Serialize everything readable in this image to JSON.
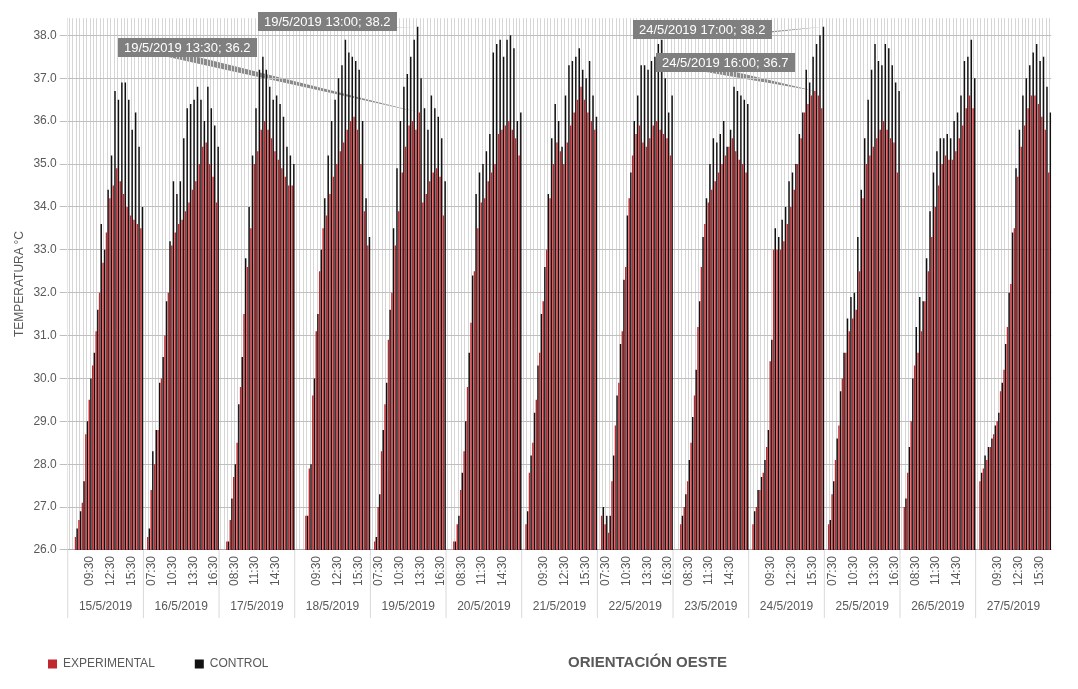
{
  "chart_data": {
    "type": "bar",
    "title": "ORIENTACIÓN OESTE",
    "ylabel": "TEMPERATURA °C",
    "categories": [
      null,
      null,
      null,
      null,
      null,
      null,
      "09:30",
      null,
      null,
      null,
      null,
      null,
      "12:30",
      null,
      null,
      null,
      null,
      null,
      "15:30",
      null,
      null,
      null,
      null,
      null,
      "07:30",
      null,
      null,
      null,
      null,
      null,
      "10:30",
      null,
      null,
      null,
      null,
      null,
      "13:30",
      null,
      null,
      null,
      null,
      null,
      "16:30",
      null,
      null,
      null,
      null,
      null,
      "08:30",
      null,
      null,
      null,
      null,
      null,
      "11:30",
      null,
      null,
      null,
      null,
      null,
      "14:30",
      null,
      null,
      null,
      null,
      null,
      null,
      null,
      null,
      null,
      null,
      null,
      "09:30",
      null,
      null,
      null,
      null,
      null,
      "12:30",
      null,
      null,
      null,
      null,
      null,
      "15:30",
      null,
      null,
      null,
      null,
      null,
      "07:30",
      null,
      null,
      null,
      null,
      null,
      "10:30",
      null,
      null,
      null,
      null,
      null,
      "13:30",
      null,
      null,
      null,
      null,
      null,
      "16:30",
      null,
      null,
      null,
      null,
      null,
      "08:30",
      null,
      null,
      null,
      null,
      null,
      "11:30",
      null,
      null,
      null,
      null,
      null,
      "14:30",
      null,
      null,
      null,
      null,
      null,
      null,
      null,
      null,
      null,
      null,
      null,
      "09:30",
      null,
      null,
      null,
      null,
      null,
      "12:30",
      null,
      null,
      null,
      null,
      null,
      "15:30",
      null,
      null,
      null,
      null,
      null,
      "07:30",
      null,
      null,
      null,
      null,
      null,
      "10:30",
      null,
      null,
      null,
      null,
      null,
      "13:30",
      null,
      null,
      null,
      null,
      null,
      "16:30",
      null,
      null,
      null,
      null,
      null,
      "08:30",
      null,
      null,
      null,
      null,
      null,
      "11:30",
      null,
      null,
      null,
      null,
      null,
      "14:30",
      null,
      null,
      null,
      null,
      null,
      null,
      null,
      null,
      null,
      null,
      null,
      "09:30",
      null,
      null,
      null,
      null,
      null,
      "12:30",
      null,
      null,
      null,
      null,
      null,
      "15:30",
      null,
      null,
      null,
      null,
      null,
      "07:30",
      null,
      null,
      null,
      null,
      null,
      "10:30",
      null,
      null,
      null,
      null,
      null,
      "13:30",
      null,
      null,
      null,
      null,
      null,
      "16:30",
      null,
      null,
      null,
      null,
      null,
      "08:30",
      null,
      null,
      null,
      null,
      null,
      "11:30",
      null,
      null,
      null,
      null,
      null,
      "14:30",
      null,
      null,
      null,
      null,
      null,
      null,
      null,
      null,
      null,
      null,
      null,
      "09:30",
      null,
      null,
      null,
      null,
      null,
      "12:30",
      null,
      null,
      null,
      null,
      null,
      "15:30",
      null,
      null,
      null
    ],
    "series": [
      {
        "name": "EXPERIMENTAL",
        "color": "#c0282e",
        "values": [
          null,
          null,
          26.3,
          26.7,
          27.1,
          28.7,
          29.5,
          30.3,
          31.1,
          32.0,
          32.7,
          33.4,
          34.2,
          34.5,
          34.9,
          34.6,
          34.3,
          34.0,
          33.8,
          33.7,
          33.6,
          33.5,
          null,
          26.3,
          27.4,
          28.0,
          28.8,
          30.0,
          31.0,
          32.0,
          33.1,
          33.4,
          33.6,
          33.7,
          33.9,
          34.1,
          34.4,
          34.6,
          35.0,
          35.4,
          35.5,
          35.0,
          34.7,
          34.1,
          null,
          null,
          26.2,
          26.7,
          27.7,
          28.5,
          29.8,
          31.5,
          32.6,
          33.5,
          35.0,
          35.3,
          35.8,
          36.0,
          35.8,
          35.6,
          35.3,
          35.1,
          34.9,
          34.7,
          34.5,
          34.5,
          null,
          null,
          null,
          26.8,
          27.9,
          29.6,
          31.1,
          32.5,
          33.5,
          33.8,
          34.3,
          34.7,
          35.0,
          35.3,
          35.5,
          35.8,
          36.0,
          36.1,
          35.8,
          35.0,
          33.9,
          33.1,
          null,
          26.2,
          27.0,
          28.3,
          29.4,
          30.9,
          32.0,
          33.1,
          33.9,
          34.8,
          35.4,
          35.9,
          36.0,
          35.8,
          36.2,
          34.1,
          34.3,
          34.6,
          34.8,
          34.9,
          34.7,
          33.8,
          null,
          null,
          26.2,
          26.6,
          27.4,
          28.3,
          29.8,
          31.3,
          32.5,
          33.5,
          34.1,
          34.2,
          34.6,
          34.8,
          35.0,
          35.7,
          35.8,
          35.9,
          36.0,
          35.8,
          35.6,
          35.2,
          null,
          26.6,
          27.8,
          28.5,
          29.5,
          30.6,
          31.8,
          33.0,
          34.2,
          35.0,
          35.5,
          35.3,
          35.0,
          35.5,
          35.9,
          36.2,
          36.5,
          36.8,
          36.5,
          36.2,
          36.0,
          35.8,
          null,
          26.8,
          26.6,
          26.4,
          27.6,
          28.9,
          29.9,
          31.1,
          32.6,
          34.2,
          35.2,
          35.7,
          35.9,
          35.5,
          35.4,
          35.6,
          35.9,
          36.0,
          35.8,
          35.7,
          35.6,
          35.2,
          null,
          null,
          26.6,
          27.0,
          27.6,
          28.5,
          29.6,
          31.2,
          32.6,
          33.6,
          34.1,
          34.4,
          34.6,
          34.8,
          35.0,
          35.2,
          35.4,
          35.6,
          35.3,
          35.1,
          35.0,
          34.8,
          null,
          26.6,
          27.0,
          27.4,
          27.8,
          28.4,
          30.4,
          33.0,
          33.0,
          33.0,
          33.2,
          33.6,
          34.0,
          34.4,
          35.0,
          35.6,
          36.2,
          36.4,
          36.6,
          36.7,
          36.6,
          36.3,
          null,
          26.6,
          27.3,
          28.1,
          28.9,
          30.0,
          30.6,
          31.1,
          31.4,
          31.6,
          32.5,
          34.2,
          35.0,
          35.2,
          35.4,
          35.6,
          35.8,
          36.0,
          35.8,
          35.6,
          35.5,
          34.8,
          null,
          27.0,
          27.8,
          29.0,
          30.3,
          30.6,
          31.1,
          31.8,
          32.5,
          33.3,
          34.0,
          34.5,
          35.0,
          35.2,
          35.1,
          35.1,
          35.3,
          35.6,
          35.9,
          36.3,
          36.6,
          36.3,
          null,
          27.6,
          27.9,
          28.1,
          28.4,
          28.7,
          29.0,
          29.7,
          30.2,
          31.2,
          32.2,
          33.5,
          34.7,
          35.4,
          35.9,
          36.3,
          36.6,
          36.6,
          36.4,
          36.1,
          35.8,
          34.8
        ]
      },
      {
        "name": "CONTROL",
        "color": "#111111",
        "values": [
          null,
          null,
          26.5,
          26.9,
          27.6,
          29.0,
          30.0,
          30.6,
          31.6,
          33.6,
          33.0,
          34.4,
          35.2,
          36.7,
          36.5,
          36.9,
          36.9,
          36.5,
          35.8,
          36.2,
          35.4,
          34.0,
          null,
          26.5,
          28.3,
          28.8,
          29.9,
          30.5,
          31.8,
          33.2,
          34.6,
          34.3,
          34.6,
          35.6,
          36.3,
          36.4,
          36.5,
          36.8,
          36.5,
          36.0,
          36.8,
          36.3,
          35.9,
          35.4,
          null,
          null,
          26.2,
          27.2,
          28.0,
          29.4,
          30.5,
          32.8,
          34.0,
          35.2,
          36.3,
          37.2,
          37.5,
          37.2,
          36.8,
          36.5,
          36.6,
          36.4,
          36.1,
          35.4,
          35.2,
          35.0,
          null,
          null,
          null,
          26.8,
          28.0,
          30.0,
          31.5,
          33.0,
          34.2,
          35.2,
          36.0,
          36.5,
          37.0,
          37.3,
          37.9,
          37.6,
          37.5,
          37.4,
          37.2,
          36.0,
          34.2,
          33.3,
          null,
          26.3,
          27.3,
          28.8,
          29.9,
          31.6,
          33.5,
          34.9,
          36.0,
          36.8,
          37.1,
          37.5,
          37.9,
          38.2,
          37.0,
          36.3,
          35.8,
          36.6,
          36.3,
          36.1,
          35.6,
          34.6,
          null,
          null,
          26.2,
          26.8,
          27.8,
          29.0,
          30.6,
          32.4,
          34.3,
          34.8,
          35.0,
          35.3,
          35.7,
          37.6,
          37.8,
          37.9,
          37.5,
          37.9,
          38.0,
          37.7,
          36.0,
          36.2,
          null,
          26.9,
          28.2,
          29.2,
          30.3,
          31.5,
          32.6,
          34.3,
          35.6,
          36.4,
          36.0,
          35.4,
          36.6,
          37.3,
          37.4,
          37.5,
          37.7,
          37.2,
          37.0,
          37.4,
          36.6,
          36.1,
          null,
          27.0,
          26.8,
          26.8,
          28.2,
          29.6,
          30.8,
          32.3,
          33.8,
          34.8,
          36.0,
          36.6,
          37.3,
          37.3,
          37.2,
          37.4,
          37.5,
          37.8,
          37.9,
          37.0,
          36.2,
          36.6,
          null,
          null,
          26.8,
          27.3,
          28.1,
          29.1,
          30.2,
          31.8,
          33.3,
          34.2,
          35.0,
          35.6,
          35.5,
          35.7,
          36.0,
          35.4,
          35.8,
          36.8,
          36.7,
          36.6,
          36.5,
          36.4,
          null,
          26.9,
          27.4,
          27.7,
          28.1,
          28.8,
          30.9,
          33.5,
          33.3,
          33.7,
          34.0,
          34.6,
          34.8,
          35.0,
          35.7,
          36.2,
          37.2,
          36.9,
          37.5,
          37.8,
          38.0,
          38.2,
          null,
          26.7,
          27.6,
          28.6,
          29.7,
          30.6,
          31.4,
          31.9,
          32.0,
          33.3,
          34.4,
          35.6,
          36.5,
          37.2,
          37.8,
          37.4,
          37.3,
          37.8,
          37.7,
          37.3,
          36.9,
          36.7,
          null,
          27.2,
          28.4,
          30.0,
          31.2,
          31.9,
          31.8,
          32.8,
          33.9,
          34.8,
          35.3,
          35.6,
          35.6,
          35.7,
          35.6,
          36.0,
          36.2,
          36.6,
          37.4,
          37.5,
          37.9,
          37.0,
          null,
          27.8,
          28.2,
          28.4,
          28.6,
          28.9,
          29.2,
          29.9,
          30.8,
          32.0,
          33.4,
          34.9,
          35.8,
          36.6,
          37.0,
          37.3,
          37.6,
          37.8,
          37.4,
          37.5,
          36.8,
          36.2
        ]
      }
    ],
    "ylim": [
      26,
      38.4
    ],
    "yticks": [
      {
        "value": 26,
        "label": "26.0"
      },
      {
        "value": 27,
        "label": "27.0"
      },
      {
        "value": 28,
        "label": "28.0"
      },
      {
        "value": 29,
        "label": "29.0"
      },
      {
        "value": 30,
        "label": "30.0"
      },
      {
        "value": 31,
        "label": "31.0"
      },
      {
        "value": 32,
        "label": "32.0"
      },
      {
        "value": 33,
        "label": "33.0"
      },
      {
        "value": 34,
        "label": "34.0"
      },
      {
        "value": 35,
        "label": "35.0"
      },
      {
        "value": 36,
        "label": "36.0"
      },
      {
        "value": 37,
        "label": "37.0"
      },
      {
        "value": 38,
        "label": "38.0"
      }
    ],
    "grid": true,
    "legend": "bottom",
    "annotations": [
      "15/5/2019",
      "16/5/2019",
      "17/5/2019",
      "18/5/2019",
      "19/5/2019",
      "20/5/2019",
      "21/5/2019",
      "22/5/2019",
      "23/5/2019",
      "24/5/2019",
      "25/5/2019",
      "26/5/2019",
      "27/5/2019",
      "19/5/2019 13:30; 36.2",
      "19/5/2019 13:00; 38.2",
      "24/5/2019 17:00; 38.2",
      "24/5/2019 16:00; 36.7"
    ]
  }
}
